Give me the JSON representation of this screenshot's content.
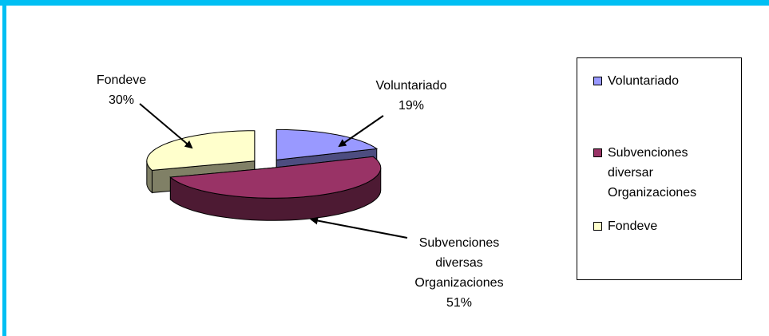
{
  "chart_data": {
    "type": "pie",
    "three_d": true,
    "exploded": true,
    "categories": [
      "Voluntariado",
      "Subvenciones diversas Organizaciones",
      "Fondeve"
    ],
    "values": [
      19,
      51,
      30
    ],
    "value_labels": [
      "19%",
      "51%",
      "30%"
    ],
    "colors": [
      "#9999ff",
      "#993366",
      "#ffffcc"
    ],
    "legend": {
      "position": "right",
      "labels": [
        "Voluntariado",
        "Subvenciones diversar Organizaciones",
        "Fondeve"
      ]
    }
  }
}
